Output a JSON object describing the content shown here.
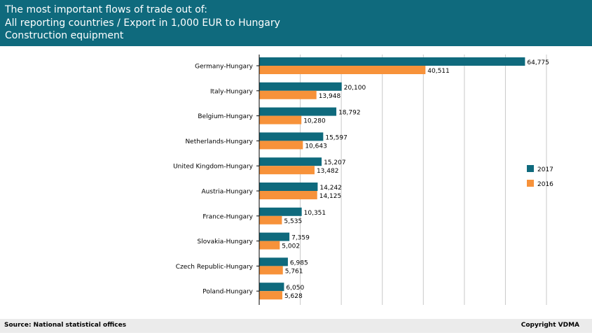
{
  "header": {
    "line1": "The most important flows of trade out of:",
    "line2": "All reporting countries  / Export in 1,000 EUR to Hungary",
    "line3": "Construction equipment"
  },
  "footer": {
    "source": "Source: National statistical offices",
    "copyright": "Copyright VDMA"
  },
  "colors": {
    "header_bg": "#0f6a7d",
    "series_2017": "#0f6a7d",
    "series_2016": "#f7923a",
    "grid": "#c8c8c8"
  },
  "chart_data": {
    "type": "bar",
    "orientation": "horizontal",
    "categories": [
      "Germany-Hungary",
      "Italy-Hungary",
      "Belgium-Hungary",
      "Netherlands-Hungary",
      "United Kingdom-Hungary",
      "Austria-Hungary",
      "France-Hungary",
      "Slovakia-Hungary",
      "Czech Republic-Hungary",
      "Poland-Hungary"
    ],
    "series": [
      {
        "name": "2017",
        "values": [
          64775,
          20100,
          18792,
          15597,
          15207,
          14242,
          10351,
          7359,
          6985,
          6050
        ],
        "labels": [
          "64,775",
          "20,100",
          "18,792",
          "15,597",
          "15,207",
          "14,242",
          "10,351",
          "7,359",
          "6,985",
          "6,050"
        ]
      },
      {
        "name": "2016",
        "values": [
          40511,
          13948,
          10280,
          10643,
          13482,
          14125,
          5535,
          5002,
          5761,
          5628
        ],
        "labels": [
          "40,511",
          "13,948",
          "10,280",
          "10,643",
          "13,482",
          "14,125",
          "5,535",
          "5,002",
          "5,761",
          "5,628"
        ]
      }
    ],
    "xlim": [
      0,
      70000
    ],
    "gridlines": [
      10000,
      20000,
      30000,
      40000,
      50000,
      60000,
      70000
    ],
    "grid": true,
    "legend": "right"
  }
}
